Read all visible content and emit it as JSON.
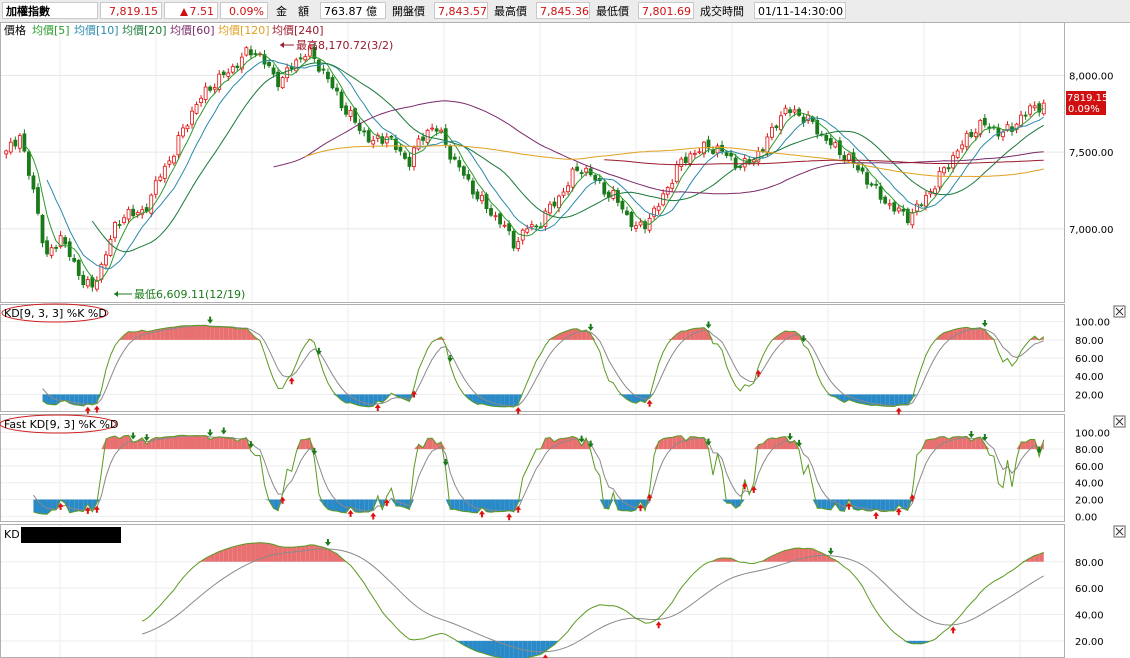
{
  "quote": {
    "name": "加權指數",
    "price": "7,819.15",
    "change": "7.51",
    "change_pct": "0.09%",
    "amount_label": "金　額",
    "amount": "763.87 億",
    "open_label": "開盤價",
    "open": "7,843.57",
    "high_label": "最高價",
    "high": "7,845.36",
    "low_label": "最低價",
    "low": "7,801.69",
    "time_label": "成交時間",
    "time": "01/11-14:30:00"
  },
  "colors": {
    "up": "#e01010",
    "down": "#1a7a1a",
    "ma5": "#2a9a2a",
    "ma10": "#2a8aa8",
    "ma20": "#1a7a3a",
    "ma60": "#7a2a6a",
    "ma120": "#e0a020",
    "ma240": "#9a1a2a",
    "k_line": "#5a9a20",
    "d_line": "#8a8a8a",
    "overbought_fill": "#e87070",
    "oversold_fill": "#2a8ac8"
  },
  "price_panel": {
    "legend_price": "價格",
    "ma_labels": [
      "均價[5]",
      "均價[10]",
      "均價[20]",
      "均價[60]",
      "均價[120]",
      "均價[240]"
    ],
    "high_annotation": "最高8,170.72(3/2)",
    "low_annotation": "最低6,609.11(12/19)",
    "last_value": "7819.15",
    "last_pct": "0.09%",
    "yticks": [
      "8,000.00",
      "7,500.00",
      "7,000.00"
    ]
  },
  "kd_panel": {
    "label": "KD[9, 3, 3] %K %D",
    "yticks": [
      "100.00",
      "80.00",
      "60.00",
      "40.00",
      "20.00"
    ]
  },
  "fastkd_panel": {
    "label": "Fast KD[9, 3] %K %D",
    "yticks": [
      "100.00",
      "80.00",
      "60.00",
      "40.00",
      "20.00",
      "0.00"
    ]
  },
  "kd3_panel": {
    "label": "KD",
    "yticks": [
      "80.00",
      "60.00",
      "40.00",
      "20.00"
    ]
  },
  "chart_data": {
    "type": "candlestick",
    "title": "加權指數",
    "price_range": [
      6550,
      8230
    ],
    "high": {
      "value": 8170.72,
      "date": "3/2"
    },
    "low": {
      "value": 6609.11,
      "date": "12/19"
    },
    "close_path": [
      7490,
      7560,
      7620,
      7420,
      7260,
      7050,
      6800,
      6870,
      6960,
      6890,
      6760,
      6700,
      6650,
      6609,
      6720,
      6880,
      6980,
      7050,
      7120,
      7100,
      7080,
      7160,
      7250,
      7350,
      7420,
      7500,
      7600,
      7700,
      7780,
      7850,
      7900,
      7950,
      7980,
      8020,
      8050,
      8110,
      8140,
      8170,
      8120,
      8060,
      7990,
      7960,
      8020,
      8080,
      8120,
      8160,
      8100,
      8050,
      7980,
      7900,
      7820,
      7760,
      7700,
      7640,
      7600,
      7560,
      7580,
      7620,
      7540,
      7480,
      7430,
      7520,
      7580,
      7640,
      7680,
      7600,
      7520,
      7440,
      7380,
      7300,
      7240,
      7180,
      7120,
      7080,
      7050,
      6960,
      6900,
      6960,
      7020,
      7000,
      7060,
      7120,
      7180,
      7230,
      7300,
      7380,
      7400,
      7360,
      7320,
      7280,
      7220,
      7200,
      7150,
      7060,
      7000,
      7020,
      7070,
      7120,
      7200,
      7290,
      7380,
      7440,
      7480,
      7500,
      7520,
      7540,
      7520,
      7500,
      7470,
      7430,
      7400,
      7440,
      7480,
      7520,
      7600,
      7700,
      7750,
      7770,
      7760,
      7730,
      7700,
      7660,
      7600,
      7560,
      7520,
      7490,
      7450,
      7400,
      7360,
      7300,
      7240,
      7200,
      7150,
      7120,
      7100,
      7080,
      7130,
      7180,
      7250,
      7300,
      7380,
      7440,
      7500,
      7560,
      7620,
      7660,
      7680,
      7660,
      7640,
      7620,
      7650,
      7700,
      7740,
      7780,
      7800,
      7819.15
    ],
    "moving_averages": [
      {
        "name": "均價[5]"
      },
      {
        "name": "均價[10]"
      },
      {
        "name": "均價[20]"
      },
      {
        "name": "均價[60]"
      },
      {
        "name": "均價[120]"
      },
      {
        "name": "均價[240]"
      }
    ]
  }
}
